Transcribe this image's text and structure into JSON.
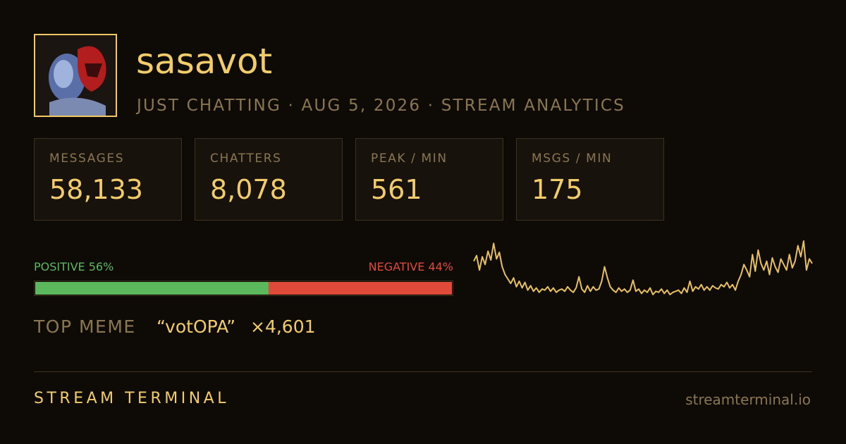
{
  "header": {
    "title": "sasavot",
    "subtitle": "JUST CHATTING · AUG 5, 2026 · STREAM ANALYTICS"
  },
  "stats": [
    {
      "label": "MESSAGES",
      "value": "58,133"
    },
    {
      "label": "CHATTERS",
      "value": "8,078"
    },
    {
      "label": "PEAK / MIN",
      "value": "561"
    },
    {
      "label": "MSGS / MIN",
      "value": "175"
    }
  ],
  "sentiment": {
    "positive_label": "POSITIVE 56%",
    "negative_label": "NEGATIVE 44%",
    "positive": 56,
    "negative": 44,
    "positive_color": "#5cb85c",
    "negative_color": "#e04a3a"
  },
  "sparkline": {
    "color": "#e8c060",
    "values": [
      380,
      430,
      300,
      420,
      350,
      470,
      390,
      540,
      400,
      460,
      330,
      260,
      220,
      180,
      230,
      150,
      200,
      140,
      190,
      120,
      160,
      110,
      140,
      100,
      130,
      120,
      150,
      110,
      140,
      100,
      120,
      130,
      110,
      150,
      120,
      100,
      140,
      240,
      130,
      100,
      160,
      110,
      150,
      120,
      130,
      200,
      330,
      230,
      150,
      120,
      100,
      140,
      110,
      130,
      100,
      120,
      210,
      110,
      130,
      90,
      120,
      100,
      140,
      80,
      110,
      100,
      130,
      90,
      120,
      80,
      100,
      110,
      120,
      90,
      140,
      100,
      200,
      110,
      150,
      130,
      170,
      120,
      150,
      120,
      160,
      140,
      130,
      170,
      150,
      190,
      140,
      170,
      120,
      200,
      260,
      350,
      300,
      240,
      440,
      290,
      480,
      360,
      300,
      380,
      260,
      410,
      330,
      280,
      400,
      350,
      300,
      440,
      320,
      380,
      520,
      420,
      561,
      300,
      400,
      360
    ]
  },
  "top_meme": {
    "label": "TOP MEME",
    "meme": "“votOPA”",
    "count": "×4,601"
  },
  "footer": {
    "brand": "STREAM TERMINAL",
    "url": "streamterminal.io"
  }
}
